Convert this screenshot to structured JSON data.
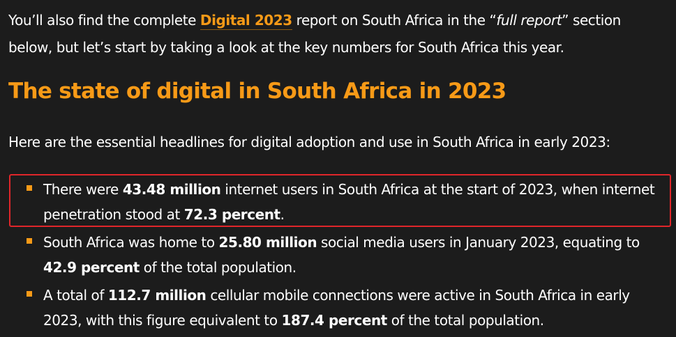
{
  "intro": {
    "part1": "You’ll also find the complete ",
    "link_label": "Digital 2023",
    "part2": " report on South Africa in the “",
    "em": "full report",
    "part3": "” section below, but let’s start by taking a look at the key numbers for South Africa this year."
  },
  "heading": "The state of digital in South Africa in 2023",
  "lead": "Here are the essential headlines for digital adoption and use in South Africa in early 2023:",
  "items": [
    {
      "t1": "There were ",
      "b1": "43.48 million",
      "t2": " internet users in South Africa at the start of 2023, when internet penetration stood at ",
      "b2": "72.3 percent",
      "t3": "."
    },
    {
      "t1": "South Africa was home to ",
      "b1": "25.80 million",
      "t2": " social media users in January 2023, equating to ",
      "b2": "42.9 percent",
      "t3": " of the total population."
    },
    {
      "t1": "A total of ",
      "b1": "112.7 million",
      "t2": " cellular mobile connections were active in South Africa in early 2023, with this figure equivalent to ",
      "b2": "187.4 percent",
      "t3": " of the total population."
    }
  ],
  "colors": {
    "background": "#1c1c1c",
    "accent": "#f79a17",
    "highlight_border": "#e0262a",
    "text": "#ffffff"
  }
}
